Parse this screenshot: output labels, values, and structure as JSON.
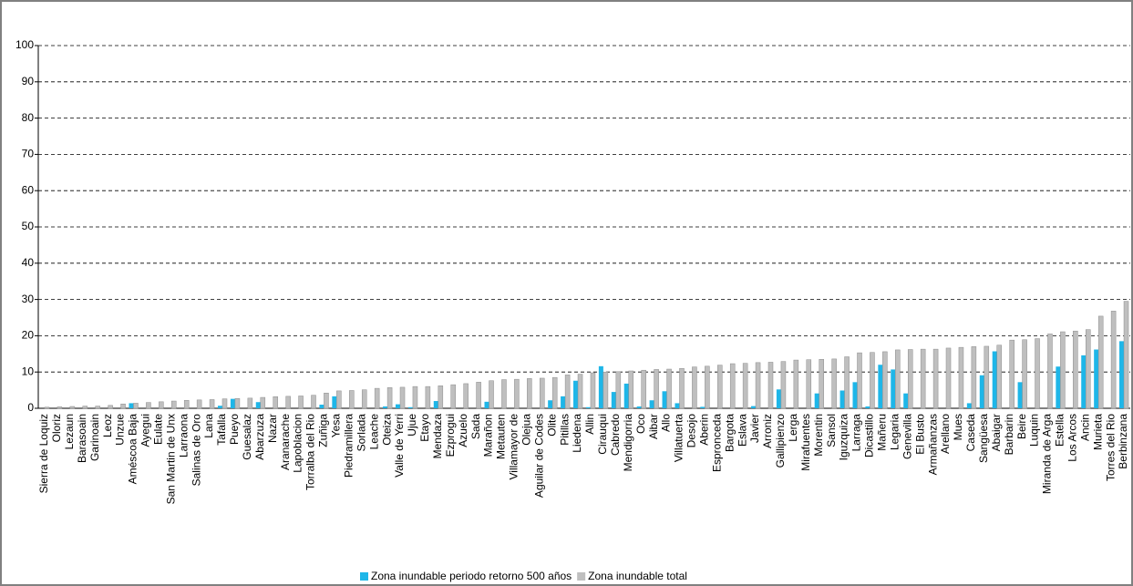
{
  "chart_data": {
    "type": "bar",
    "categories": [
      "Sierra de Loquiz",
      "Oloriz",
      "Lezaun",
      "Barasoain",
      "Garinoain",
      "Leoz",
      "Unzue",
      "Améscoa Baja",
      "Ayegui",
      "Eulate",
      "San Martin de Unx",
      "Larraona",
      "Salinas de Oro",
      "Lana",
      "Tafalla",
      "Pueyo",
      "Guesalaz",
      "Abarzuza",
      "Nazar",
      "Aranarache",
      "Lapoblacion",
      "Torralba del Rio",
      "Zuñiga",
      "Yesa",
      "Piedramillera",
      "Sorlada",
      "Leache",
      "Oteiza",
      "Valle de Yerri",
      "Ujue",
      "Etayo",
      "Mendaza",
      "Ezprogui",
      "Azuelo",
      "Sada",
      "Marañon",
      "Metauten",
      "Villamayor de",
      "Olejua",
      "Aguilar de Codes",
      "Olite",
      "Pitillas",
      "Liedena",
      "Allin",
      "Cirauqui",
      "Cabredo",
      "Mendigorria",
      "Oco",
      "Aibar",
      "Allo",
      "Villatuerta",
      "Desojo",
      "Aberin",
      "Espronceda",
      "Bargota",
      "Eslava",
      "Javier",
      "Arroniz",
      "Gallipienzo",
      "Lerga",
      "Mirafuentes",
      "Morentin",
      "Sansol",
      "Iguzquiza",
      "Larraga",
      "Dicastillo",
      "Mañeru",
      "Legaria",
      "Genevilla",
      "El Busto",
      "Armañanzas",
      "Arellano",
      "Mues",
      "Caseda",
      "Sangüesa",
      "Abaigar",
      "Barbarin",
      "Beire",
      "Luquin",
      "Miranda de Arga",
      "Estella",
      "Los Arcos",
      "Ancin",
      "Murieta",
      "Torres del Rio",
      "Berbinzana"
    ],
    "series": [
      {
        "name": "Zona inundable periodo retorno 500 años",
        "color": "#1eb6e8",
        "values": [
          0,
          0,
          0,
          0,
          0,
          0,
          0,
          1.4,
          0,
          0,
          0,
          0,
          0,
          0,
          0.7,
          2.6,
          0,
          1.7,
          0,
          0,
          0,
          0,
          1,
          3.3,
          0,
          0,
          0,
          0.5,
          1.1,
          0.3,
          0,
          2,
          0,
          0,
          0,
          1.8,
          0,
          0,
          0,
          0,
          2.2,
          3.3,
          7.6,
          0.3,
          11.6,
          4.5,
          6.8,
          0.5,
          2.2,
          4.7,
          1.4,
          0,
          0.4,
          0,
          0,
          0,
          0.6,
          0,
          5.2,
          0,
          0,
          4.1,
          0,
          4.9,
          7.2,
          0.5,
          12,
          10.7,
          4.1,
          0,
          0,
          0,
          0,
          1.4,
          9.1,
          15.7,
          0,
          7.2,
          0,
          0,
          11.5,
          0,
          14.6,
          16.2,
          0,
          18.5
        ]
      },
      {
        "name": "Zona inundable total",
        "color": "#bfbfbf",
        "values": [
          0.3,
          0.4,
          0.5,
          0.6,
          0.6,
          0.8,
          1.2,
          1.4,
          1.6,
          1.8,
          2,
          2.2,
          2.3,
          2.4,
          2.6,
          2.7,
          2.8,
          3,
          3.2,
          3.3,
          3.4,
          3.6,
          4.2,
          4.8,
          4.9,
          5.1,
          5.5,
          5.7,
          5.8,
          6,
          6,
          6.2,
          6.5,
          6.8,
          7.2,
          7.6,
          7.9,
          8,
          8.2,
          8.3,
          8.5,
          9.2,
          9.4,
          9.8,
          10,
          10.1,
          10.3,
          10.5,
          10.7,
          10.8,
          11,
          11.4,
          11.6,
          11.9,
          12.3,
          12.4,
          12.6,
          12.7,
          12.9,
          13.3,
          13.4,
          13.5,
          13.6,
          14.2,
          15.3,
          15.4,
          15.6,
          16.1,
          16.2,
          16.3,
          16.3,
          16.6,
          16.8,
          17,
          17.1,
          17.4,
          18.8,
          18.9,
          19.2,
          20.5,
          21.1,
          21.3,
          21.7,
          25.4,
          26.8,
          29.5
        ]
      }
    ],
    "ylim": [
      0,
      100
    ],
    "yticks": [
      0,
      10,
      20,
      30,
      40,
      50,
      60,
      70,
      80,
      90,
      100
    ],
    "grid": true
  }
}
